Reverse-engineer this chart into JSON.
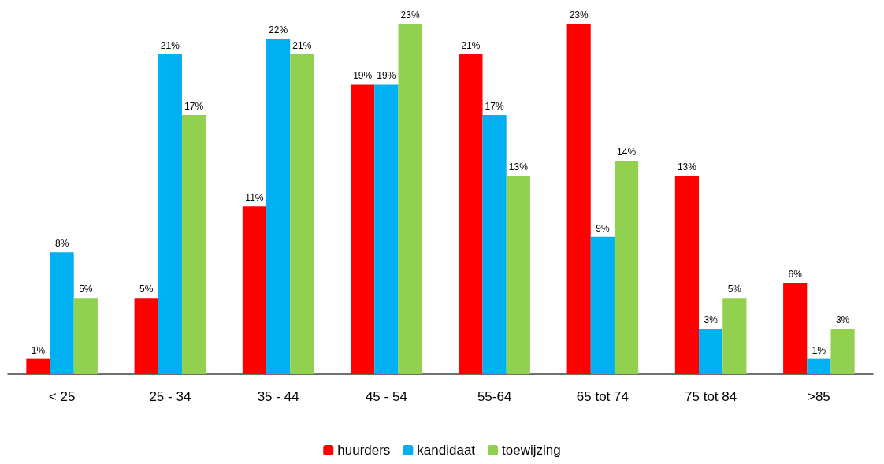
{
  "chart_data": {
    "type": "bar",
    "categories": [
      "< 25",
      "25 - 34",
      "35 - 44",
      "45 - 54",
      "55-64",
      "65 tot 74",
      "75 tot 84",
      ">85"
    ],
    "series": [
      {
        "name": "huurders",
        "color": "#ff0000",
        "values": [
          1,
          5,
          11,
          19,
          21,
          23,
          13,
          6
        ],
        "value_labels": [
          "1%",
          "5%",
          "11%",
          "19%",
          "21%",
          "23%",
          "13%",
          "6%"
        ]
      },
      {
        "name": "kandidaat",
        "color": "#00b0f0",
        "values": [
          8,
          21,
          22,
          19,
          17,
          9,
          3,
          1
        ],
        "value_labels": [
          "8%",
          "21%",
          "22%",
          "19%",
          "17%",
          "9%",
          "3%",
          "1%"
        ]
      },
      {
        "name": "toewijzing",
        "color": "#92d050",
        "values": [
          5,
          17,
          21,
          23,
          13,
          14,
          5,
          3
        ],
        "value_labels": [
          "5%",
          "17%",
          "21%",
          "23%",
          "13%",
          "14%",
          "5%",
          "3%"
        ]
      }
    ],
    "legend": "bottom",
    "grid": false
  }
}
